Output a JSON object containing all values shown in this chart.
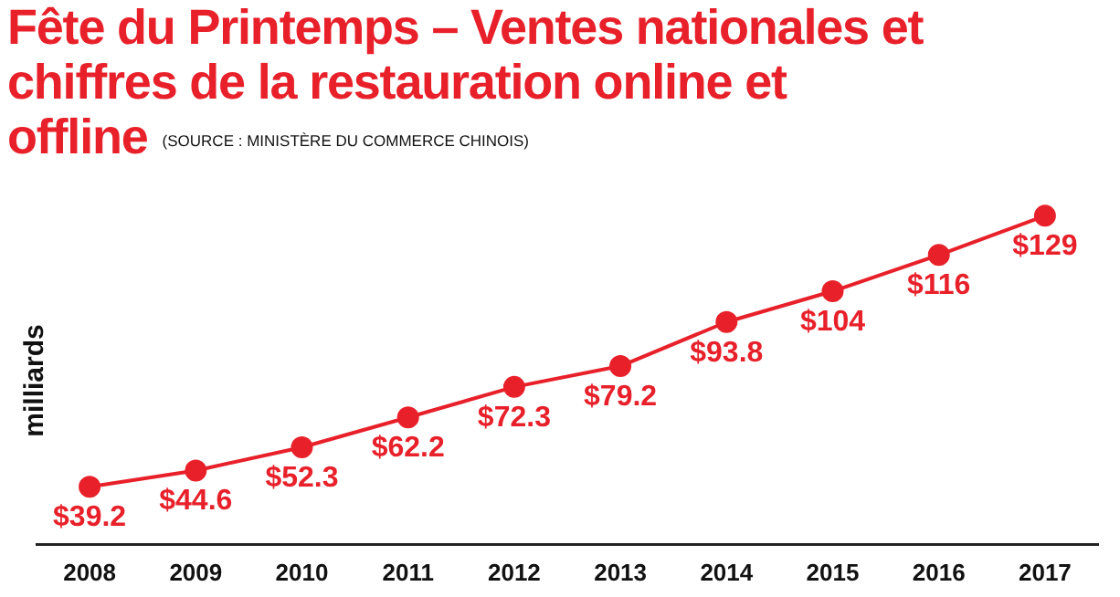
{
  "chart_data": {
    "type": "line",
    "title": "Fête du Printemps – Ventes nationales et chiffres de la restauration online et offline",
    "subtitle": "(SOURCE : MINISTÈRE DU COMMERCE CHINOIS)",
    "ylabel": "milliards",
    "categories": [
      "2008",
      "2009",
      "2010",
      "2011",
      "2012",
      "2013",
      "2014",
      "2015",
      "2016",
      "2017"
    ],
    "series": [
      {
        "color": "#e8202a",
        "values": [
          39.2,
          44.6,
          52.3,
          62.2,
          72.3,
          79.2,
          93.8,
          104,
          116,
          129
        ],
        "value_labels": [
          "$39.2",
          "$44.6",
          "$52.3",
          "$62.2",
          "$72.3",
          "$79.2",
          "$93.8",
          "$104",
          "$116",
          "$129"
        ]
      }
    ],
    "marker": "circle",
    "grid": false,
    "legend": false
  }
}
